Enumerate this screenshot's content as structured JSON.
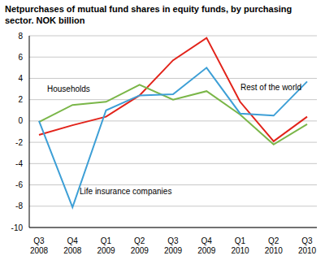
{
  "chart_data": {
    "type": "line",
    "title": "Netpurchases of mutual fund shares in equity funds, by purchasing sector. NOK billion",
    "categories": [
      "Q3 2008",
      "Q4 2008",
      "Q1 2009",
      "Q2 2009",
      "Q3 2009",
      "Q4 2009",
      "Q1 2010",
      "Q2 2010",
      "Q3 2010"
    ],
    "series": [
      {
        "name": "Rest of the world",
        "color": "#e2231a",
        "values": [
          -1.3,
          -0.4,
          0.4,
          2.4,
          5.7,
          7.8,
          1.8,
          -1.9,
          0.4
        ]
      },
      {
        "name": "Households",
        "color": "#7ab648",
        "values": [
          -0.1,
          1.5,
          1.8,
          3.4,
          2.0,
          2.8,
          0.6,
          -2.2,
          -0.3
        ]
      },
      {
        "name": "Life insurance companies",
        "color": "#3d9fd6",
        "values": [
          0.0,
          -8.1,
          1.0,
          2.4,
          2.5,
          5.0,
          0.7,
          0.5,
          3.7
        ]
      }
    ],
    "ylim": [
      -10,
      8
    ],
    "yticks": [
      -10,
      -8,
      -6,
      -4,
      -2,
      0,
      2,
      4,
      6,
      8
    ],
    "grid": true
  }
}
